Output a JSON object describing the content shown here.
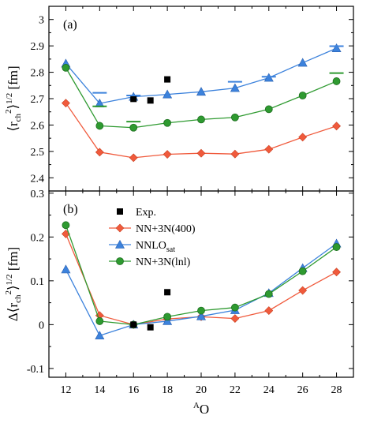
{
  "colors": {
    "nn3n400": "#f05a3c",
    "nnlo_sat": "#3c82dc",
    "nn3n_lnl": "#2e9a30",
    "exp": "#000000",
    "axis": "#000000"
  },
  "chart_data": [
    {
      "type": "line",
      "panel_label": "(a)",
      "ylabel_parts": {
        "main": "⟨r",
        "sub": "ch",
        "sup2": "2",
        "tail": "⟩",
        "sup": "1/2",
        "unit": " [fm]"
      },
      "xlim": [
        11,
        29
      ],
      "ylim": [
        2.35,
        3.05
      ],
      "yticks": [
        2.4,
        2.5,
        2.6,
        2.7,
        2.8,
        2.9,
        3.0
      ],
      "ytick_labels": [
        "2.4",
        "2.5",
        "2.6",
        "2.7",
        "2.8",
        "2.9",
        "3"
      ],
      "x": [
        12,
        14,
        16,
        18,
        20,
        22,
        24,
        26,
        28
      ],
      "series": [
        {
          "key": "nn3n400",
          "marker": "diamond",
          "values": [
            2.683,
            2.497,
            2.476,
            2.489,
            2.493,
            2.49,
            2.508,
            2.554,
            2.596
          ]
        },
        {
          "key": "nnlo_sat",
          "marker": "triangle",
          "values": [
            2.833,
            2.682,
            2.707,
            2.716,
            2.726,
            2.74,
            2.779,
            2.836,
            2.891
          ]
        },
        {
          "key": "nn3n_lnl",
          "marker": "circle",
          "values": [
            2.817,
            2.597,
            2.59,
            2.608,
            2.621,
            2.629,
            2.66,
            2.712,
            2.766
          ]
        }
      ],
      "exp": {
        "x": [
          16,
          17,
          18
        ],
        "y": [
          2.699,
          2.693,
          2.773
        ]
      },
      "dashes": [
        {
          "series": "nnlo_sat",
          "x": 14,
          "y": 2.722
        },
        {
          "series": "nnlo_sat",
          "x": 16,
          "y": 2.712
        },
        {
          "series": "nnlo_sat",
          "x": 22,
          "y": 2.764
        },
        {
          "series": "nnlo_sat",
          "x": 24,
          "y": 2.783
        },
        {
          "series": "nnlo_sat",
          "x": 28,
          "y": 2.899
        },
        {
          "series": "nn3n_lnl",
          "x": 14,
          "y": 2.671
        },
        {
          "series": "nn3n_lnl",
          "x": 16,
          "y": 2.613
        },
        {
          "series": "nn3n_lnl",
          "x": 28,
          "y": 2.797
        }
      ]
    },
    {
      "type": "line",
      "panel_label": "(b)",
      "ylabel_parts": {
        "main": "Δ⟨r",
        "sub": "ch",
        "sup2": "2",
        "tail": "⟩",
        "sup": "1/2",
        "unit": " [fm]"
      },
      "xlabel_parts": {
        "sup": "A",
        "main": "O"
      },
      "xlim": [
        11,
        29
      ],
      "ylim": [
        -0.12,
        0.305
      ],
      "yticks": [
        -0.1,
        0,
        0.1,
        0.2,
        0.3
      ],
      "ytick_labels": [
        "-0.1",
        "0",
        "0.1",
        "0.2",
        "0.3"
      ],
      "x": [
        12,
        14,
        16,
        18,
        20,
        22,
        24,
        26,
        28
      ],
      "xtick_labels": [
        "12",
        "14",
        "16",
        "18",
        "20",
        "22",
        "24",
        "26",
        "28"
      ],
      "series": [
        {
          "key": "nn3n400",
          "marker": "diamond",
          "values": [
            0.207,
            0.021,
            0.0,
            0.013,
            0.018,
            0.014,
            0.032,
            0.078,
            0.12
          ]
        },
        {
          "key": "nnlo_sat",
          "marker": "triangle",
          "values": [
            0.126,
            -0.025,
            0.0,
            0.008,
            0.019,
            0.033,
            0.072,
            0.129,
            0.185
          ]
        },
        {
          "key": "nn3n_lnl",
          "marker": "circle",
          "values": [
            0.227,
            0.008,
            0.0,
            0.018,
            0.032,
            0.039,
            0.07,
            0.122,
            0.177
          ]
        }
      ],
      "exp": {
        "x": [
          16,
          17,
          18
        ],
        "y": [
          0.0,
          -0.006,
          0.074
        ]
      },
      "legend": {
        "placement": "top-center",
        "entries": [
          {
            "key": "exp",
            "label": "Exp.",
            "marker": "square"
          },
          {
            "key": "nn3n400",
            "label": "NN+3N(400)",
            "marker": "diamond"
          },
          {
            "key": "nnlo_sat",
            "label": "NNLO",
            "label_sub": "sat",
            "marker": "triangle"
          },
          {
            "key": "nn3n_lnl",
            "label": "NN+3N(lnl)",
            "marker": "circle"
          }
        ]
      }
    }
  ]
}
